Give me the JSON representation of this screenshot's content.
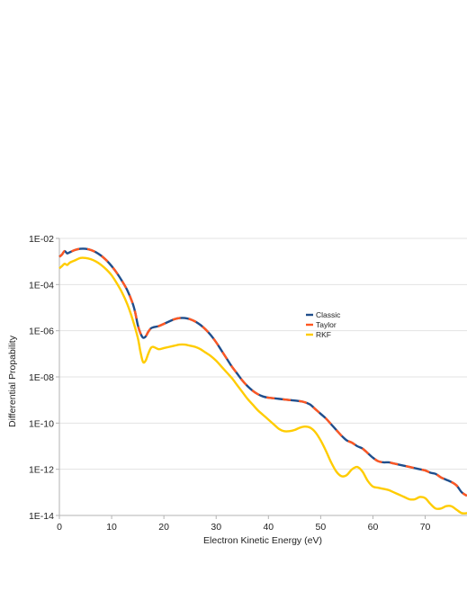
{
  "chart_data": {
    "type": "line",
    "title": "",
    "xlabel": "Electron Kinetic Energy (eV)",
    "ylabel": "Differential Propability",
    "xlim": [
      0,
      78
    ],
    "ylim_log10": [
      -14,
      -2
    ],
    "yscale": "log",
    "grid": "horizontal",
    "legend_position": "right",
    "x_ticks": [
      0,
      10,
      20,
      30,
      40,
      50,
      60,
      70
    ],
    "y_tick_labels": [
      "1E-02",
      "1E-04",
      "1E-06",
      "1E-08",
      "1E-10",
      "1E-12",
      "1E-14"
    ],
    "y_tick_log10": [
      -2,
      -4,
      -6,
      -8,
      -10,
      -12,
      -14
    ],
    "series": [
      {
        "name": "Classic",
        "color": "#1f4e8c",
        "style": "solid",
        "x": [
          0,
          0.5,
          1,
          1.5,
          2,
          3,
          4,
          5,
          6,
          7,
          8,
          9,
          10,
          11,
          12,
          13,
          14,
          14.5,
          15,
          15.5,
          16,
          16.5,
          17,
          17.5,
          18,
          19,
          20,
          21,
          22,
          23,
          24,
          25,
          26,
          27,
          28,
          29,
          30,
          31,
          32,
          33,
          34,
          35,
          36,
          37,
          38,
          39,
          40,
          42,
          44,
          46,
          47,
          48,
          49,
          50,
          51,
          52,
          53,
          54,
          55,
          56,
          57,
          58,
          59,
          60,
          61,
          62,
          63,
          64,
          65,
          66,
          67,
          68,
          69,
          70,
          71,
          72,
          73,
          74,
          75,
          76,
          77,
          78
        ],
        "y_log10": [
          -2.8,
          -2.7,
          -2.55,
          -2.65,
          -2.6,
          -2.5,
          -2.45,
          -2.45,
          -2.5,
          -2.6,
          -2.75,
          -2.95,
          -3.2,
          -3.5,
          -3.85,
          -4.25,
          -4.8,
          -5.2,
          -5.75,
          -6.1,
          -6.3,
          -6.25,
          -6.05,
          -5.9,
          -5.85,
          -5.8,
          -5.7,
          -5.6,
          -5.5,
          -5.45,
          -5.45,
          -5.5,
          -5.6,
          -5.75,
          -5.95,
          -6.2,
          -6.5,
          -6.85,
          -7.2,
          -7.55,
          -7.85,
          -8.15,
          -8.4,
          -8.6,
          -8.75,
          -8.85,
          -8.9,
          -8.95,
          -9.0,
          -9.05,
          -9.1,
          -9.2,
          -9.4,
          -9.6,
          -9.8,
          -10.05,
          -10.3,
          -10.55,
          -10.75,
          -10.85,
          -11.0,
          -11.1,
          -11.3,
          -11.5,
          -11.65,
          -11.7,
          -11.7,
          -11.75,
          -11.8,
          -11.85,
          -11.9,
          -11.95,
          -12.0,
          -12.05,
          -12.15,
          -12.2,
          -12.35,
          -12.45,
          -12.55,
          -12.7,
          -13.0,
          -13.15
        ]
      },
      {
        "name": "Taylor",
        "color": "#ff5722",
        "style": "dashed",
        "x": [
          0,
          0.5,
          1,
          1.5,
          2,
          3,
          4,
          5,
          6,
          7,
          8,
          9,
          10,
          11,
          12,
          13,
          14,
          14.5,
          15,
          15.5,
          16,
          16.5,
          17,
          17.5,
          18,
          19,
          20,
          21,
          22,
          23,
          24,
          25,
          26,
          27,
          28,
          29,
          30,
          31,
          32,
          33,
          34,
          35,
          36,
          37,
          38,
          39,
          40,
          42,
          44,
          46,
          47,
          48,
          49,
          50,
          51,
          52,
          53,
          54,
          55,
          56,
          57,
          58,
          59,
          60,
          61,
          62,
          63,
          64,
          65,
          66,
          67,
          68,
          69,
          70,
          71,
          72,
          73,
          74,
          75,
          76,
          77,
          78
        ],
        "y_log10": [
          -2.8,
          -2.7,
          -2.55,
          -2.65,
          -2.6,
          -2.5,
          -2.45,
          -2.45,
          -2.5,
          -2.6,
          -2.75,
          -2.95,
          -3.2,
          -3.5,
          -3.85,
          -4.25,
          -4.8,
          -5.2,
          -5.75,
          -6.1,
          -6.3,
          -6.25,
          -6.05,
          -5.9,
          -5.85,
          -5.8,
          -5.7,
          -5.6,
          -5.5,
          -5.45,
          -5.45,
          -5.5,
          -5.6,
          -5.75,
          -5.95,
          -6.2,
          -6.5,
          -6.85,
          -7.2,
          -7.55,
          -7.85,
          -8.15,
          -8.4,
          -8.6,
          -8.75,
          -8.85,
          -8.9,
          -8.95,
          -9.0,
          -9.05,
          -9.1,
          -9.2,
          -9.4,
          -9.6,
          -9.8,
          -10.05,
          -10.3,
          -10.55,
          -10.75,
          -10.85,
          -11.0,
          -11.1,
          -11.3,
          -11.5,
          -11.65,
          -11.7,
          -11.7,
          -11.75,
          -11.8,
          -11.85,
          -11.9,
          -11.95,
          -12.0,
          -12.05,
          -12.15,
          -12.2,
          -12.35,
          -12.45,
          -12.55,
          -12.7,
          -13.0,
          -13.15
        ]
      },
      {
        "name": "RKF",
        "color": "#ffcc00",
        "style": "solid",
        "x": [
          0,
          0.5,
          1,
          1.5,
          2,
          3,
          4,
          5,
          6,
          7,
          8,
          9,
          10,
          11,
          12,
          13,
          14,
          15,
          15.5,
          16,
          16.5,
          17,
          17.5,
          18,
          19,
          20,
          21,
          22,
          23,
          24,
          25,
          26,
          27,
          28,
          29,
          30,
          31,
          32,
          33,
          34,
          35,
          36,
          37,
          38,
          39,
          40,
          41,
          42,
          43,
          44,
          45,
          46,
          47,
          48,
          49,
          50,
          51,
          52,
          53,
          54,
          55,
          56,
          57,
          58,
          59,
          60,
          61,
          62,
          63,
          64,
          65,
          66,
          67,
          68,
          69,
          70,
          71,
          72,
          73,
          74,
          75,
          76,
          77,
          78
        ],
        "y_log10": [
          -3.3,
          -3.2,
          -3.1,
          -3.15,
          -3.05,
          -2.95,
          -2.85,
          -2.85,
          -2.9,
          -3.0,
          -3.15,
          -3.35,
          -3.6,
          -3.95,
          -4.35,
          -4.85,
          -5.5,
          -6.3,
          -6.9,
          -7.35,
          -7.3,
          -7.0,
          -6.75,
          -6.7,
          -6.8,
          -6.75,
          -6.7,
          -6.65,
          -6.6,
          -6.6,
          -6.65,
          -6.7,
          -6.8,
          -6.95,
          -7.1,
          -7.3,
          -7.55,
          -7.8,
          -8.05,
          -8.35,
          -8.65,
          -8.95,
          -9.2,
          -9.45,
          -9.65,
          -9.85,
          -10.05,
          -10.25,
          -10.35,
          -10.35,
          -10.3,
          -10.2,
          -10.15,
          -10.2,
          -10.4,
          -10.75,
          -11.2,
          -11.7,
          -12.1,
          -12.3,
          -12.25,
          -12.0,
          -11.9,
          -12.1,
          -12.5,
          -12.75,
          -12.8,
          -12.85,
          -12.9,
          -13.0,
          -13.1,
          -13.2,
          -13.3,
          -13.3,
          -13.2,
          -13.25,
          -13.5,
          -13.7,
          -13.7,
          -13.6,
          -13.6,
          -13.75,
          -13.9,
          -13.9
        ]
      }
    ]
  }
}
